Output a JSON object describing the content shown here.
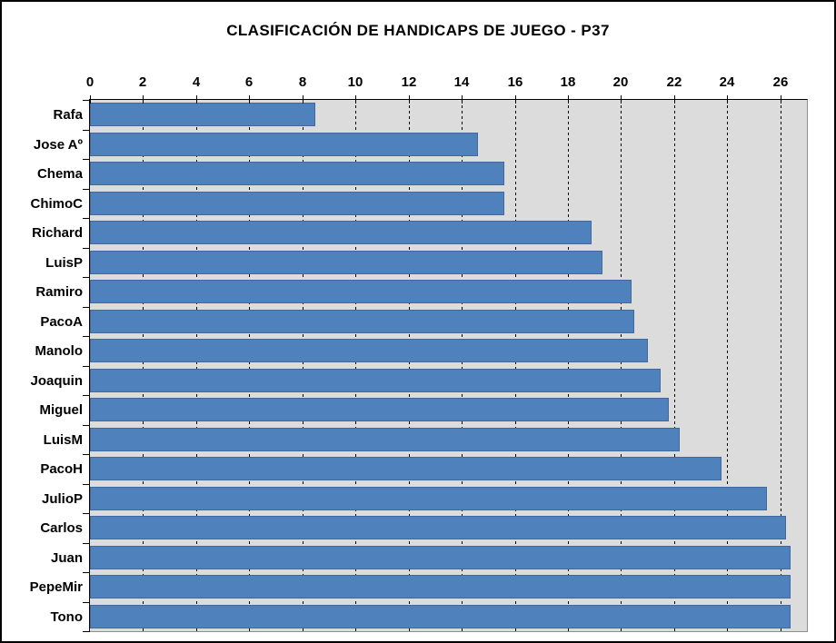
{
  "title": "CLASIFICACIÓN DE HANDICAPS DE JUEGO - P37",
  "colors": {
    "bar_fill": "#4F81BD",
    "bar_border": "#41699B",
    "plot_background": "#DCDCDC",
    "axis_line": "#000000",
    "plot_border_gray": "#8F8F8F",
    "page_background": "#FFFFFF",
    "text": "#000000"
  },
  "chart_data": {
    "type": "bar",
    "orientation": "horizontal",
    "title": "CLASIFICACIÓN DE HANDICAPS DE JUEGO - P37",
    "xlabel": "",
    "ylabel": "",
    "xlim": [
      0,
      27
    ],
    "xticks": [
      0,
      2,
      4,
      6,
      8,
      10,
      12,
      14,
      16,
      18,
      20,
      22,
      24,
      26
    ],
    "grid": "vertical-dashed",
    "legend": "none",
    "categories": [
      "Rafa",
      "Jose Aº",
      "Chema",
      "ChimoC",
      "Richard",
      "LuisP",
      "Ramiro",
      "PacoA",
      "Manolo",
      "Joaquin",
      "Miguel",
      "LuisM",
      "PacoH",
      "JulioP",
      "Carlos",
      "Juan",
      "PepeMir",
      "Tono"
    ],
    "values": [
      8.5,
      14.6,
      15.6,
      15.6,
      18.9,
      19.3,
      20.4,
      20.5,
      21.0,
      21.5,
      21.8,
      22.2,
      23.8,
      25.5,
      26.2,
      26.4,
      26.4,
      26.4
    ]
  }
}
